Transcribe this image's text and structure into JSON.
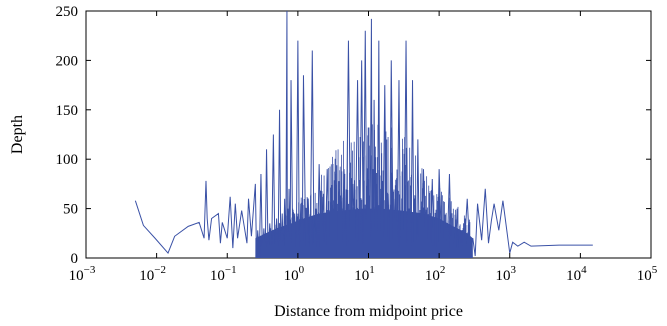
{
  "chart_data": {
    "type": "line",
    "xlabel": "Distance from midpoint price",
    "ylabel": "Depth",
    "xscale": "log",
    "xlim": [
      0.001,
      100000
    ],
    "ylim": [
      0,
      250
    ],
    "grid": false,
    "legend": "none",
    "x_ticks": [
      {
        "base": "10",
        "exp": "−3"
      },
      {
        "base": "10",
        "exp": "−2"
      },
      {
        "base": "10",
        "exp": "−1"
      },
      {
        "base": "10",
        "exp": "0"
      },
      {
        "base": "10",
        "exp": "1"
      },
      {
        "base": "10",
        "exp": "2"
      },
      {
        "base": "10",
        "exp": "3"
      },
      {
        "base": "10",
        "exp": "4"
      },
      {
        "base": "10",
        "exp": "5"
      }
    ],
    "x_tick_values": [
      0.001,
      0.01,
      0.1,
      1,
      10,
      100,
      1000,
      10000,
      100000
    ],
    "y_ticks": [
      "0",
      "50",
      "100",
      "150",
      "200",
      "250"
    ],
    "y_tick_values": [
      0,
      50,
      100,
      150,
      200,
      250
    ],
    "series": [
      {
        "color": "#3a51a6",
        "x": [
          0.005,
          0.0065,
          0.0095,
          0.0145,
          0.018,
          0.028,
          0.04,
          0.047,
          0.05,
          0.052,
          0.055,
          0.06,
          0.075,
          0.08,
          0.085,
          0.1,
          0.11,
          0.12,
          0.13,
          0.14,
          0.16,
          0.19,
          0.2,
          0.22,
          0.25,
          0.27,
          0.3,
          0.33,
          0.36,
          0.4,
          0.45,
          0.5,
          0.55,
          0.6,
          0.65,
          0.7,
          0.72,
          0.75,
          0.8,
          0.9,
          1.0,
          1.1,
          1.2,
          1.4,
          1.6,
          1.8,
          2.0,
          2.3,
          2.6,
          3.0,
          3.4,
          3.9,
          4.5,
          5.2,
          6.0,
          7.0,
          8.0,
          9.0,
          10.0,
          11.0,
          11.5,
          12.0,
          13.0,
          14.0,
          15.0,
          17.0,
          19.0,
          21.0,
          24.0,
          27.0,
          30.0,
          34.0,
          38.0,
          42.0,
          46.0,
          50.0,
          55.0,
          60.0,
          70.0,
          80.0,
          90.0,
          100.0,
          120.0,
          140.0,
          160.0,
          180.0,
          200.0,
          250.0,
          300.0,
          350.0,
          400.0,
          450.0,
          500.0,
          550.0,
          600.0,
          700.0,
          800.0,
          900.0,
          1000.0,
          1100.0,
          1300.0,
          1600.0,
          2000.0,
          5000.0,
          10000.0,
          15000.0
        ],
        "values": [
          58,
          33,
          20,
          5,
          22,
          32,
          36,
          20,
          78,
          40,
          18,
          40,
          45,
          15,
          36,
          20,
          62,
          10,
          55,
          20,
          48,
          15,
          60,
          22,
          75,
          28,
          85,
          30,
          110,
          35,
          125,
          40,
          150,
          45,
          60,
          250,
          50,
          70,
          180,
          45,
          220,
          55,
          185,
          60,
          210,
          50,
          95,
          65,
          90,
          60,
          85,
          70,
          90,
          220,
          75,
          180,
          200,
          230,
          80,
          242,
          90,
          160,
          75,
          220,
          70,
          175,
          65,
          200,
          60,
          180,
          55,
          220,
          50,
          180,
          45,
          120,
          40,
          90,
          35,
          80,
          30,
          90,
          28,
          85,
          25,
          50,
          22,
          60,
          20,
          55,
          18,
          70,
          15,
          38,
          55,
          28,
          58,
          30,
          5,
          16,
          12,
          16,
          12,
          13,
          13,
          13
        ]
      }
    ]
  }
}
